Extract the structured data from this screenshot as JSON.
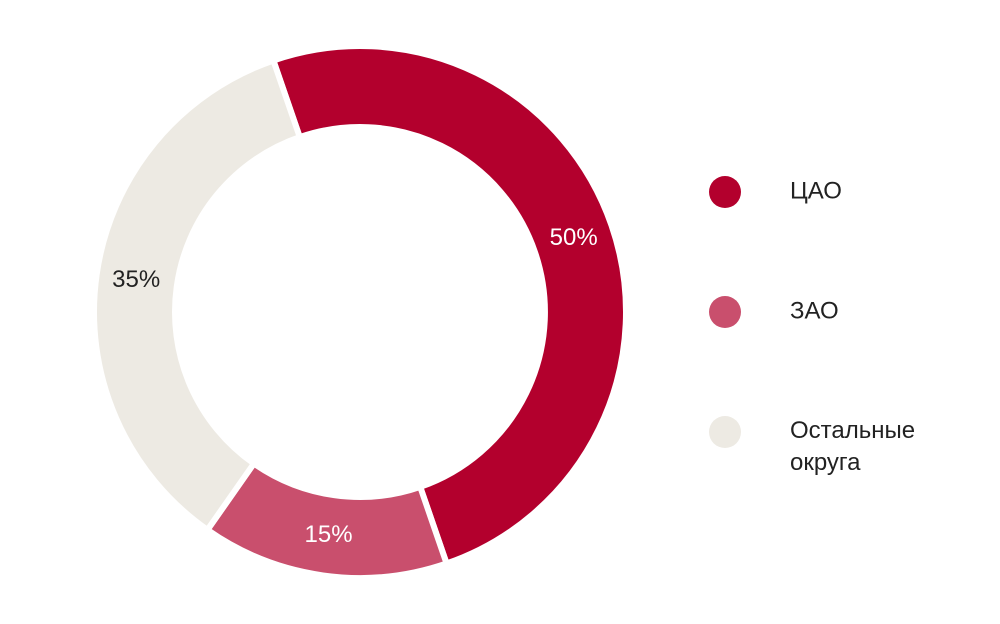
{
  "chart_data": {
    "type": "donut",
    "categories": [
      "ЦАО",
      "ЗАО",
      "Остальные округа"
    ],
    "values": [
      50,
      15,
      35
    ],
    "value_labels": [
      "50%",
      "15%",
      "35%"
    ],
    "colors": [
      "#b3002d",
      "#c94f6d",
      "#edeae3"
    ]
  }
}
